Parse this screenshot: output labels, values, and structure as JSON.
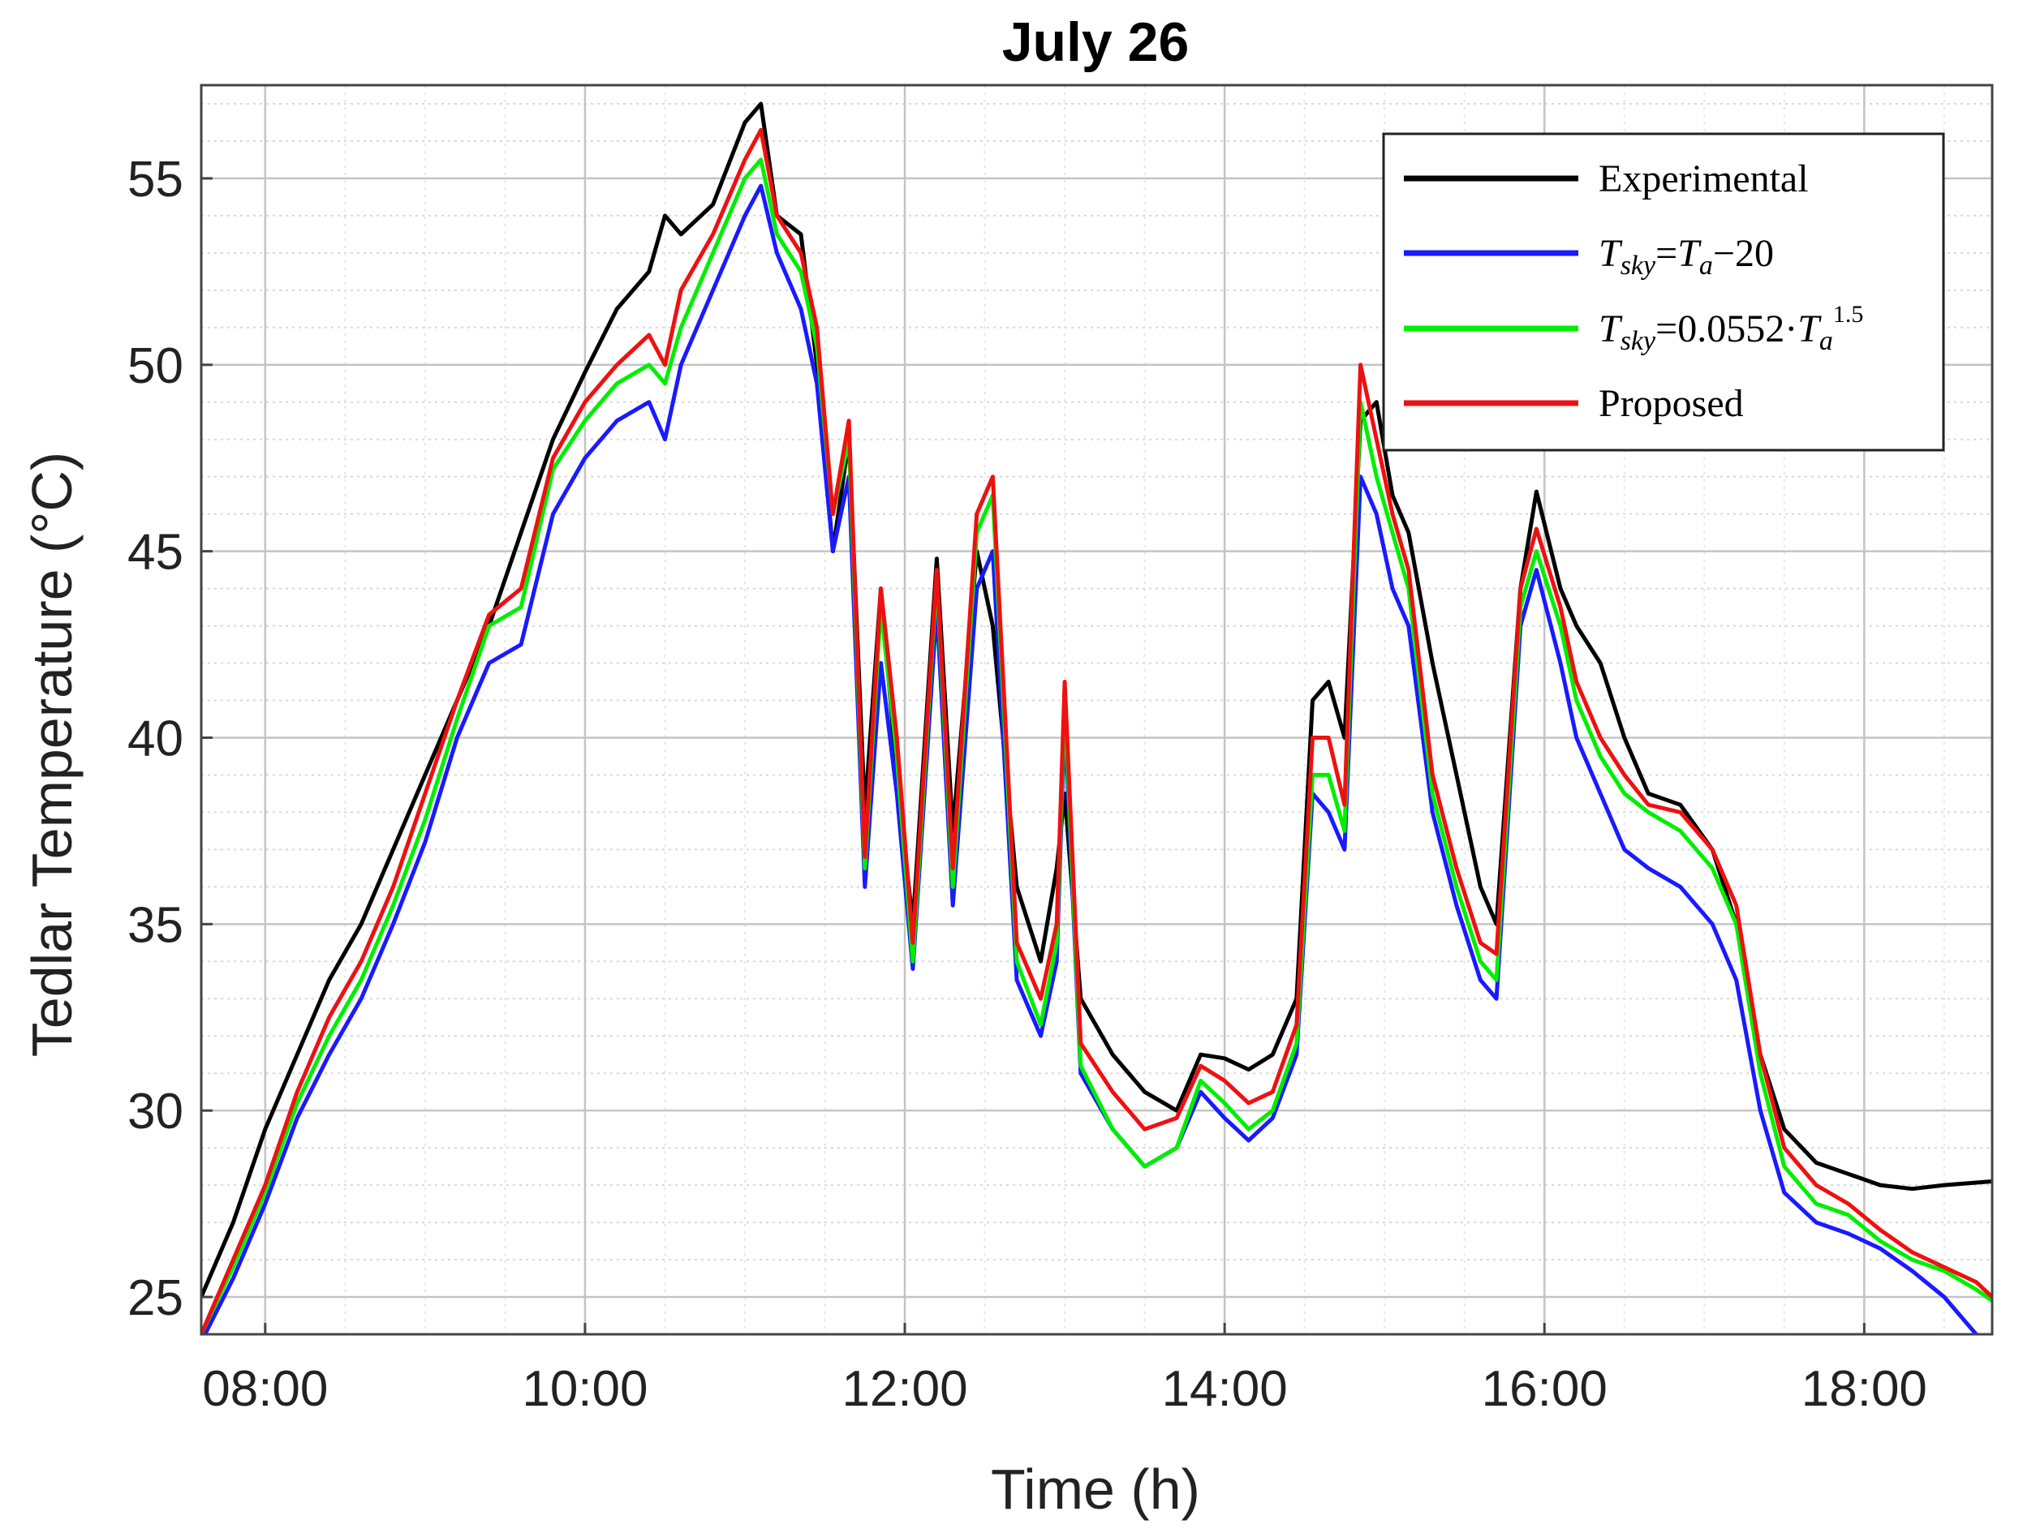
{
  "chart_data": {
    "type": "line",
    "title": "July 26",
    "xlabel": "Time (h)",
    "ylabel": "Tedlar Temperature (°C)",
    "xlim": [
      7.6,
      18.8
    ],
    "ylim": [
      24,
      57.5
    ],
    "x_ticks": [
      8,
      10,
      12,
      14,
      16,
      18
    ],
    "x_tick_labels": [
      "08:00",
      "10:00",
      "12:00",
      "14:00",
      "16:00",
      "18:00"
    ],
    "y_ticks": [
      25,
      30,
      35,
      40,
      45,
      50,
      55
    ],
    "y_tick_labels": [
      "25",
      "30",
      "35",
      "40",
      "45",
      "50",
      "55"
    ],
    "grid": "major and minor",
    "legend_position": "top-right",
    "series": [
      {
        "name": "Experimental",
        "color": "#000000",
        "points": [
          [
            7.6,
            25.0
          ],
          [
            7.8,
            27.0
          ],
          [
            8.0,
            29.5
          ],
          [
            8.2,
            31.5
          ],
          [
            8.4,
            33.5
          ],
          [
            8.6,
            35.0
          ],
          [
            8.8,
            37.0
          ],
          [
            9.0,
            39.0
          ],
          [
            9.2,
            41.0
          ],
          [
            9.4,
            43.0
          ],
          [
            9.6,
            45.5
          ],
          [
            9.8,
            48.0
          ],
          [
            10.0,
            49.8
          ],
          [
            10.2,
            51.5
          ],
          [
            10.4,
            52.5
          ],
          [
            10.5,
            54.0
          ],
          [
            10.6,
            53.5
          ],
          [
            10.8,
            54.3
          ],
          [
            11.0,
            56.5
          ],
          [
            11.1,
            57.0
          ],
          [
            11.2,
            54.0
          ],
          [
            11.35,
            53.5
          ],
          [
            11.45,
            50.0
          ],
          [
            11.55,
            45.0
          ],
          [
            11.65,
            48.0
          ],
          [
            11.75,
            38.0
          ],
          [
            11.85,
            44.0
          ],
          [
            11.95,
            39.0
          ],
          [
            12.05,
            35.0
          ],
          [
            12.2,
            44.8
          ],
          [
            12.3,
            37.5
          ],
          [
            12.45,
            45.0
          ],
          [
            12.55,
            43.0
          ],
          [
            12.7,
            36.0
          ],
          [
            12.85,
            34.0
          ],
          [
            12.95,
            36.5
          ],
          [
            13.0,
            38.5
          ],
          [
            13.1,
            33.0
          ],
          [
            13.3,
            31.5
          ],
          [
            13.5,
            30.5
          ],
          [
            13.7,
            30.0
          ],
          [
            13.85,
            31.5
          ],
          [
            14.0,
            31.4
          ],
          [
            14.15,
            31.1
          ],
          [
            14.3,
            31.5
          ],
          [
            14.45,
            33.0
          ],
          [
            14.55,
            41.0
          ],
          [
            14.65,
            41.5
          ],
          [
            14.75,
            40.0
          ],
          [
            14.85,
            48.5
          ],
          [
            14.95,
            49.0
          ],
          [
            15.05,
            46.5
          ],
          [
            15.15,
            45.5
          ],
          [
            15.3,
            42.0
          ],
          [
            15.45,
            39.0
          ],
          [
            15.6,
            36.0
          ],
          [
            15.7,
            35.0
          ],
          [
            15.85,
            44.0
          ],
          [
            15.95,
            46.6
          ],
          [
            16.1,
            44.0
          ],
          [
            16.2,
            43.0
          ],
          [
            16.35,
            42.0
          ],
          [
            16.5,
            40.0
          ],
          [
            16.65,
            38.5
          ],
          [
            16.85,
            38.2
          ],
          [
            17.05,
            37.0
          ],
          [
            17.2,
            35.0
          ],
          [
            17.35,
            31.5
          ],
          [
            17.5,
            29.5
          ],
          [
            17.7,
            28.6
          ],
          [
            17.9,
            28.3
          ],
          [
            18.1,
            28.0
          ],
          [
            18.3,
            27.9
          ],
          [
            18.5,
            28.0
          ],
          [
            18.8,
            28.1
          ]
        ]
      },
      {
        "name": "T_sky = T_a − 20",
        "color": "#1a1aff",
        "points": [
          [
            7.6,
            23.8
          ],
          [
            7.8,
            25.5
          ],
          [
            8.0,
            27.5
          ],
          [
            8.2,
            29.8
          ],
          [
            8.4,
            31.5
          ],
          [
            8.6,
            33.0
          ],
          [
            8.8,
            35.0
          ],
          [
            9.0,
            37.2
          ],
          [
            9.2,
            40.0
          ],
          [
            9.4,
            42.0
          ],
          [
            9.6,
            42.5
          ],
          [
            9.8,
            46.0
          ],
          [
            10.0,
            47.5
          ],
          [
            10.2,
            48.5
          ],
          [
            10.4,
            49.0
          ],
          [
            10.5,
            48.0
          ],
          [
            10.6,
            50.0
          ],
          [
            10.8,
            52.0
          ],
          [
            11.0,
            54.0
          ],
          [
            11.1,
            54.8
          ],
          [
            11.2,
            53.0
          ],
          [
            11.35,
            51.5
          ],
          [
            11.45,
            49.5
          ],
          [
            11.55,
            45.0
          ],
          [
            11.65,
            47.0
          ],
          [
            11.75,
            36.0
          ],
          [
            11.85,
            42.0
          ],
          [
            11.95,
            38.5
          ],
          [
            12.05,
            33.8
          ],
          [
            12.2,
            43.5
          ],
          [
            12.3,
            35.5
          ],
          [
            12.45,
            44.0
          ],
          [
            12.55,
            45.0
          ],
          [
            12.7,
            33.5
          ],
          [
            12.85,
            32.0
          ],
          [
            12.95,
            34.0
          ],
          [
            13.0,
            40.5
          ],
          [
            13.1,
            31.0
          ],
          [
            13.3,
            29.5
          ],
          [
            13.5,
            28.5
          ],
          [
            13.7,
            29.0
          ],
          [
            13.85,
            30.5
          ],
          [
            14.0,
            29.8
          ],
          [
            14.15,
            29.2
          ],
          [
            14.3,
            29.8
          ],
          [
            14.45,
            31.5
          ],
          [
            14.55,
            38.5
          ],
          [
            14.65,
            38.0
          ],
          [
            14.75,
            37.0
          ],
          [
            14.85,
            47.0
          ],
          [
            14.95,
            46.0
          ],
          [
            15.05,
            44.0
          ],
          [
            15.15,
            43.0
          ],
          [
            15.3,
            38.0
          ],
          [
            15.45,
            35.5
          ],
          [
            15.6,
            33.5
          ],
          [
            15.7,
            33.0
          ],
          [
            15.85,
            43.0
          ],
          [
            15.95,
            44.5
          ],
          [
            16.1,
            42.0
          ],
          [
            16.2,
            40.0
          ],
          [
            16.35,
            38.5
          ],
          [
            16.5,
            37.0
          ],
          [
            16.65,
            36.5
          ],
          [
            16.85,
            36.0
          ],
          [
            17.05,
            35.0
          ],
          [
            17.2,
            33.5
          ],
          [
            17.35,
            30.0
          ],
          [
            17.5,
            27.8
          ],
          [
            17.7,
            27.0
          ],
          [
            17.9,
            26.7
          ],
          [
            18.1,
            26.3
          ],
          [
            18.3,
            25.7
          ],
          [
            18.5,
            25.0
          ],
          [
            18.7,
            24.0
          ],
          [
            18.8,
            23.8
          ]
        ]
      },
      {
        "name": "T_sky = 0.0552·T_a^1.5",
        "color": "#00ee00",
        "points": [
          [
            7.6,
            24.0
          ],
          [
            7.8,
            25.8
          ],
          [
            8.0,
            27.8
          ],
          [
            8.2,
            30.2
          ],
          [
            8.4,
            32.0
          ],
          [
            8.6,
            33.5
          ],
          [
            8.8,
            35.5
          ],
          [
            9.0,
            37.8
          ],
          [
            9.2,
            40.5
          ],
          [
            9.4,
            43.0
          ],
          [
            9.6,
            43.5
          ],
          [
            9.8,
            47.2
          ],
          [
            10.0,
            48.5
          ],
          [
            10.2,
            49.5
          ],
          [
            10.4,
            50.0
          ],
          [
            10.5,
            49.5
          ],
          [
            10.6,
            51.0
          ],
          [
            10.8,
            53.0
          ],
          [
            11.0,
            55.0
          ],
          [
            11.1,
            55.5
          ],
          [
            11.2,
            53.5
          ],
          [
            11.35,
            52.5
          ],
          [
            11.45,
            50.5
          ],
          [
            11.55,
            46.0
          ],
          [
            11.65,
            48.0
          ],
          [
            11.75,
            36.5
          ],
          [
            11.85,
            43.5
          ],
          [
            11.95,
            39.5
          ],
          [
            12.05,
            34.0
          ],
          [
            12.2,
            44.3
          ],
          [
            12.3,
            36.0
          ],
          [
            12.45,
            45.5
          ],
          [
            12.55,
            46.5
          ],
          [
            12.7,
            34.0
          ],
          [
            12.85,
            32.3
          ],
          [
            12.95,
            34.5
          ],
          [
            13.0,
            41.0
          ],
          [
            13.1,
            31.2
          ],
          [
            13.3,
            29.5
          ],
          [
            13.5,
            28.5
          ],
          [
            13.7,
            29.0
          ],
          [
            13.85,
            30.8
          ],
          [
            14.0,
            30.2
          ],
          [
            14.15,
            29.5
          ],
          [
            14.3,
            30.0
          ],
          [
            14.45,
            31.8
          ],
          [
            14.55,
            39.0
          ],
          [
            14.65,
            39.0
          ],
          [
            14.75,
            37.5
          ],
          [
            14.85,
            49.0
          ],
          [
            14.95,
            47.0
          ],
          [
            15.05,
            45.5
          ],
          [
            15.15,
            44.0
          ],
          [
            15.3,
            38.5
          ],
          [
            15.45,
            36.0
          ],
          [
            15.6,
            34.0
          ],
          [
            15.7,
            33.5
          ],
          [
            15.85,
            43.5
          ],
          [
            15.95,
            45.0
          ],
          [
            16.1,
            43.0
          ],
          [
            16.2,
            41.0
          ],
          [
            16.35,
            39.5
          ],
          [
            16.5,
            38.5
          ],
          [
            16.65,
            38.0
          ],
          [
            16.85,
            37.5
          ],
          [
            17.05,
            36.5
          ],
          [
            17.2,
            35.0
          ],
          [
            17.35,
            31.0
          ],
          [
            17.5,
            28.5
          ],
          [
            17.7,
            27.5
          ],
          [
            17.9,
            27.2
          ],
          [
            18.1,
            26.5
          ],
          [
            18.3,
            26.0
          ],
          [
            18.5,
            25.7
          ],
          [
            18.7,
            25.2
          ],
          [
            18.8,
            24.9
          ]
        ]
      },
      {
        "name": "Proposed",
        "color": "#ee1111",
        "points": [
          [
            7.6,
            24.0
          ],
          [
            7.8,
            26.0
          ],
          [
            8.0,
            28.0
          ],
          [
            8.2,
            30.5
          ],
          [
            8.4,
            32.5
          ],
          [
            8.6,
            34.0
          ],
          [
            8.8,
            36.0
          ],
          [
            9.0,
            38.5
          ],
          [
            9.2,
            41.0
          ],
          [
            9.4,
            43.3
          ],
          [
            9.6,
            44.0
          ],
          [
            9.8,
            47.5
          ],
          [
            10.0,
            49.0
          ],
          [
            10.2,
            50.0
          ],
          [
            10.4,
            50.8
          ],
          [
            10.5,
            50.0
          ],
          [
            10.6,
            52.0
          ],
          [
            10.8,
            53.5
          ],
          [
            11.0,
            55.5
          ],
          [
            11.1,
            56.3
          ],
          [
            11.2,
            54.0
          ],
          [
            11.35,
            53.0
          ],
          [
            11.45,
            51.0
          ],
          [
            11.55,
            46.0
          ],
          [
            11.65,
            48.5
          ],
          [
            11.75,
            36.8
          ],
          [
            11.85,
            44.0
          ],
          [
            11.95,
            40.0
          ],
          [
            12.05,
            34.5
          ],
          [
            12.2,
            44.5
          ],
          [
            12.3,
            36.5
          ],
          [
            12.45,
            46.0
          ],
          [
            12.55,
            47.0
          ],
          [
            12.7,
            34.5
          ],
          [
            12.85,
            33.0
          ],
          [
            12.95,
            35.0
          ],
          [
            13.0,
            41.5
          ],
          [
            13.1,
            31.8
          ],
          [
            13.3,
            30.5
          ],
          [
            13.5,
            29.5
          ],
          [
            13.7,
            29.8
          ],
          [
            13.85,
            31.2
          ],
          [
            14.0,
            30.8
          ],
          [
            14.15,
            30.2
          ],
          [
            14.3,
            30.5
          ],
          [
            14.45,
            32.3
          ],
          [
            14.55,
            40.0
          ],
          [
            14.65,
            40.0
          ],
          [
            14.75,
            38.2
          ],
          [
            14.85,
            50.0
          ],
          [
            14.95,
            48.0
          ],
          [
            15.05,
            46.0
          ],
          [
            15.15,
            44.5
          ],
          [
            15.3,
            39.0
          ],
          [
            15.45,
            36.5
          ],
          [
            15.6,
            34.5
          ],
          [
            15.7,
            34.2
          ],
          [
            15.85,
            44.0
          ],
          [
            15.95,
            45.6
          ],
          [
            16.1,
            43.5
          ],
          [
            16.2,
            41.5
          ],
          [
            16.35,
            40.0
          ],
          [
            16.5,
            39.0
          ],
          [
            16.65,
            38.2
          ],
          [
            16.85,
            38.0
          ],
          [
            17.05,
            37.0
          ],
          [
            17.2,
            35.5
          ],
          [
            17.35,
            31.5
          ],
          [
            17.5,
            29.0
          ],
          [
            17.7,
            28.0
          ],
          [
            17.9,
            27.5
          ],
          [
            18.1,
            26.8
          ],
          [
            18.3,
            26.2
          ],
          [
            18.5,
            25.8
          ],
          [
            18.7,
            25.4
          ],
          [
            18.8,
            25.0
          ]
        ]
      }
    ]
  },
  "legend": {
    "items": [
      {
        "label": "Experimental",
        "color": "#000000"
      },
      {
        "label": "T_sky = T_a − 20",
        "color": "#1a1aff"
      },
      {
        "label": "T_sky = 0.0552·T_a^1.5",
        "color": "#00ee00"
      },
      {
        "label": "Proposed",
        "color": "#ee1111"
      }
    ]
  }
}
